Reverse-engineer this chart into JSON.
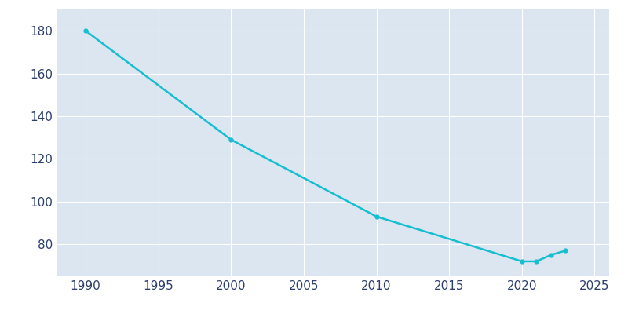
{
  "years": [
    1990,
    2000,
    2010,
    2020,
    2021,
    2022,
    2023
  ],
  "population": [
    180,
    129,
    93,
    72,
    72,
    75,
    77
  ],
  "line_color": "#17becf",
  "marker_style": "o",
  "marker_size": 3.5,
  "line_width": 1.8,
  "axes_facecolor": "#dce6f1",
  "figure_facecolor": "#ffffff",
  "grid_color": "#ffffff",
  "tick_color": "#2d3f6c",
  "xlim": [
    1988,
    2026
  ],
  "ylim": [
    65,
    190
  ],
  "xticks": [
    1990,
    1995,
    2000,
    2005,
    2010,
    2015,
    2020,
    2025
  ],
  "yticks": [
    80,
    100,
    120,
    140,
    160,
    180
  ],
  "tick_fontsize": 11
}
